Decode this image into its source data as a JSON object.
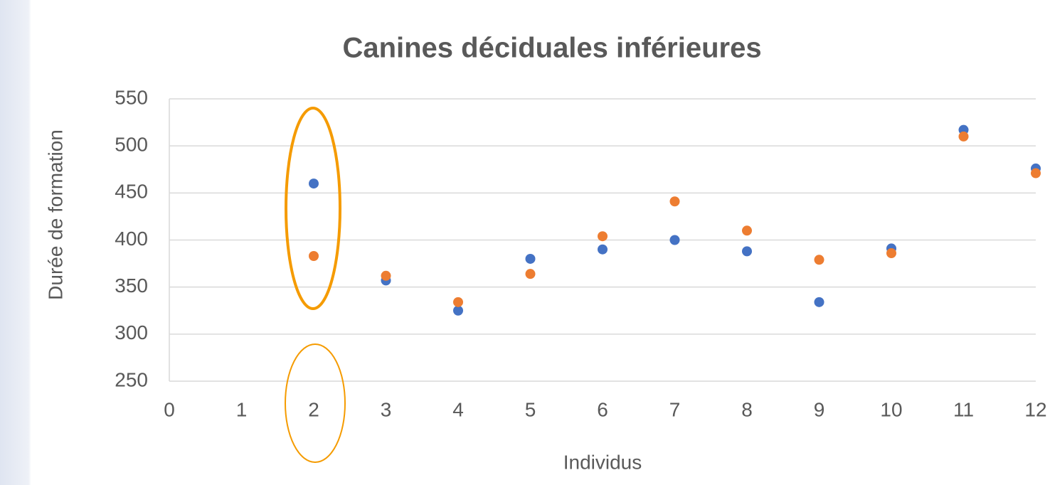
{
  "chart_data": {
    "type": "scatter",
    "title": "Canines déciduales inférieures",
    "x_label": "Individus",
    "y_label": "Durée de formation",
    "x": [
      2,
      3,
      4,
      5,
      6,
      7,
      8,
      9,
      10,
      11,
      12
    ],
    "series": [
      {
        "color": "#4472c4",
        "values": [
          460,
          357,
          325,
          380,
          390,
          400,
          388,
          334,
          391,
          517,
          476
        ]
      },
      {
        "color": "#ed7d31",
        "values": [
          383,
          362,
          334,
          364,
          404,
          441,
          410,
          379,
          386,
          510,
          471
        ]
      }
    ],
    "xlim": [
      0,
      12
    ],
    "xticks": [
      0,
      1,
      2,
      3,
      4,
      5,
      6,
      7,
      8,
      9,
      10,
      11,
      12
    ],
    "ylim": [
      250,
      550
    ],
    "yticks": [
      250,
      300,
      350,
      400,
      450,
      500,
      550
    ],
    "grid": true
  }
}
